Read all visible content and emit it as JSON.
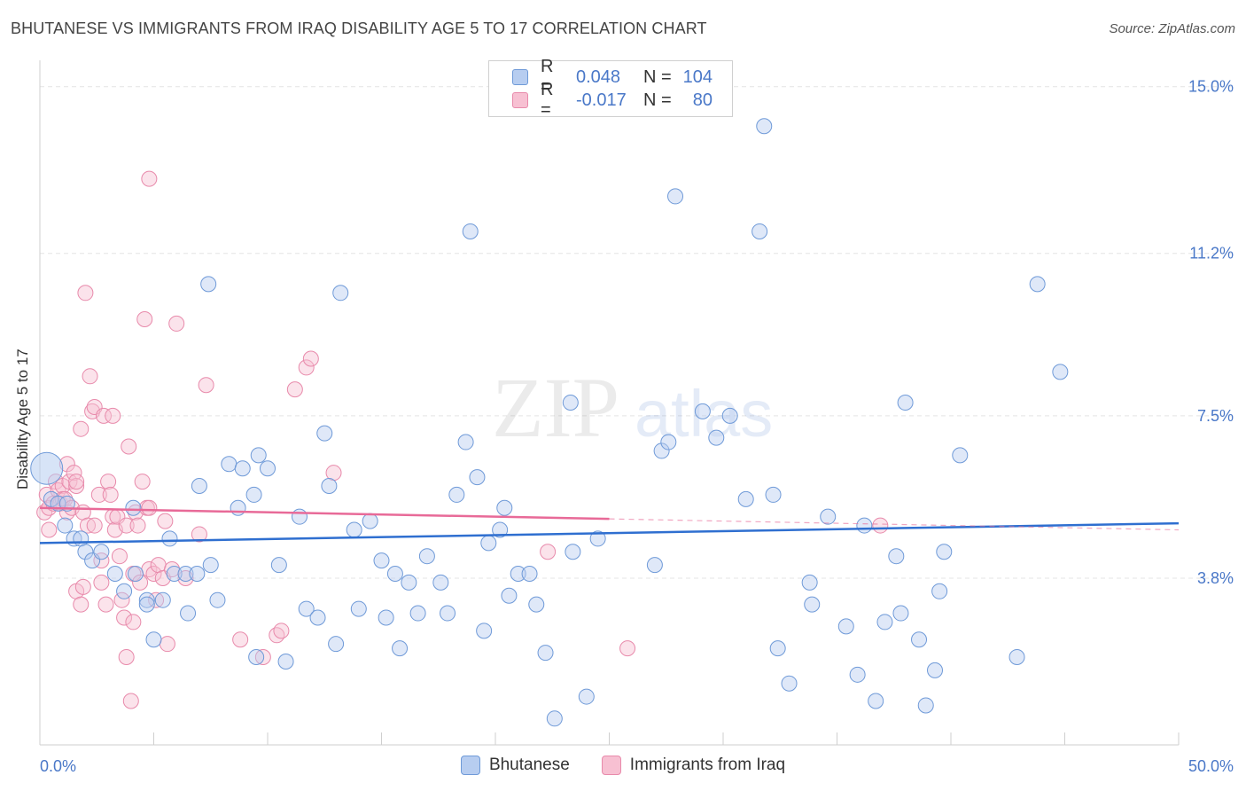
{
  "title": "BHUTANESE VS IMMIGRANTS FROM IRAQ DISABILITY AGE 5 TO 17 CORRELATION CHART",
  "source": "Source: ZipAtlas.com",
  "watermark": {
    "zip": "ZIP",
    "atlas": "atlas"
  },
  "legend": {
    "r_label": "R =",
    "n_label": "N =",
    "rows": [
      {
        "r_value": "0.048",
        "n_value": "104"
      },
      {
        "r_value": "-0.017",
        "n_value": "80"
      }
    ]
  },
  "colors": {
    "blue_fill": "#b7cdf0",
    "blue_edge": "#6f9ad8",
    "blue_line": "#2f6fd0",
    "pink_fill": "#f7c0d2",
    "pink_edge": "#e88aab",
    "pink_line": "#e86a98",
    "grid": "#e4e4e4",
    "axis_text": "#4a78c8"
  },
  "chart_data": {
    "type": "scatter",
    "title": "BHUTANESE VS IMMIGRANTS FROM IRAQ DISABILITY AGE 5 TO 17 CORRELATION CHART",
    "xlabel": "",
    "ylabel": "Disability Age 5 to 17",
    "xlim": [
      0,
      50
    ],
    "ylim": [
      0,
      15.6
    ],
    "x_tick_labels": [
      "0.0%",
      "50.0%"
    ],
    "y_ticks": [
      3.8,
      7.5,
      11.2,
      15.0
    ],
    "y_tick_labels": [
      "3.8%",
      "7.5%",
      "11.2%",
      "15.0%"
    ],
    "legend_position": "top-center",
    "series": [
      {
        "name": "Bhutanese",
        "r": 0.048,
        "n": 104,
        "trend": [
          [
            0,
            4.6
          ],
          [
            50,
            5.05
          ]
        ],
        "points": [
          [
            0.3,
            6.3
          ],
          [
            0.5,
            5.6
          ],
          [
            0.8,
            5.5
          ],
          [
            1.2,
            5.5
          ],
          [
            1.1,
            5.0
          ],
          [
            1.5,
            4.7
          ],
          [
            1.8,
            4.7
          ],
          [
            2.0,
            4.4
          ],
          [
            2.3,
            4.2
          ],
          [
            2.7,
            4.4
          ],
          [
            3.3,
            3.9
          ],
          [
            3.7,
            3.5
          ],
          [
            4.1,
            5.4
          ],
          [
            4.2,
            3.9
          ],
          [
            4.7,
            3.3
          ],
          [
            4.7,
            3.2
          ],
          [
            5.0,
            2.4
          ],
          [
            5.4,
            3.3
          ],
          [
            5.7,
            4.7
          ],
          [
            5.9,
            3.9
          ],
          [
            6.4,
            3.9
          ],
          [
            6.5,
            3.0
          ],
          [
            6.9,
            3.9
          ],
          [
            7.0,
            5.9
          ],
          [
            7.5,
            4.1
          ],
          [
            7.4,
            10.5
          ],
          [
            7.8,
            3.3
          ],
          [
            8.3,
            6.4
          ],
          [
            8.7,
            5.4
          ],
          [
            8.9,
            6.3
          ],
          [
            9.4,
            5.7
          ],
          [
            9.5,
            2.0
          ],
          [
            9.6,
            6.6
          ],
          [
            10.0,
            6.3
          ],
          [
            10.5,
            4.1
          ],
          [
            10.8,
            1.9
          ],
          [
            11.4,
            5.2
          ],
          [
            11.7,
            3.1
          ],
          [
            12.2,
            2.9
          ],
          [
            12.5,
            7.1
          ],
          [
            12.7,
            5.9
          ],
          [
            13.0,
            2.3
          ],
          [
            13.2,
            10.3
          ],
          [
            13.8,
            4.9
          ],
          [
            14.0,
            3.1
          ],
          [
            14.5,
            5.1
          ],
          [
            15.0,
            4.2
          ],
          [
            15.2,
            2.9
          ],
          [
            15.6,
            3.9
          ],
          [
            15.8,
            2.2
          ],
          [
            16.2,
            3.7
          ],
          [
            16.6,
            3.0
          ],
          [
            17.0,
            4.3
          ],
          [
            17.6,
            3.7
          ],
          [
            17.9,
            3.0
          ],
          [
            18.3,
            5.7
          ],
          [
            18.7,
            6.9
          ],
          [
            18.9,
            11.7
          ],
          [
            19.2,
            6.1
          ],
          [
            19.5,
            2.6
          ],
          [
            19.7,
            4.6
          ],
          [
            20.2,
            4.9
          ],
          [
            20.4,
            5.4
          ],
          [
            20.6,
            3.4
          ],
          [
            21.0,
            3.9
          ],
          [
            21.5,
            3.9
          ],
          [
            21.8,
            3.2
          ],
          [
            22.2,
            2.1
          ],
          [
            22.6,
            0.6
          ],
          [
            23.3,
            7.8
          ],
          [
            23.4,
            4.4
          ],
          [
            24.0,
            1.1
          ],
          [
            24.5,
            4.7
          ],
          [
            27.0,
            4.1
          ],
          [
            27.3,
            6.7
          ],
          [
            27.6,
            6.9
          ],
          [
            27.9,
            12.5
          ],
          [
            29.1,
            7.6
          ],
          [
            29.7,
            7.0
          ],
          [
            30.3,
            7.5
          ],
          [
            31.0,
            5.6
          ],
          [
            31.6,
            11.7
          ],
          [
            31.8,
            14.1
          ],
          [
            32.2,
            5.7
          ],
          [
            32.4,
            2.2
          ],
          [
            32.9,
            1.4
          ],
          [
            33.8,
            3.7
          ],
          [
            33.9,
            3.2
          ],
          [
            34.6,
            5.2
          ],
          [
            35.4,
            2.7
          ],
          [
            35.9,
            1.6
          ],
          [
            36.2,
            5.0
          ],
          [
            36.7,
            1.0
          ],
          [
            37.1,
            2.8
          ],
          [
            37.8,
            3.0
          ],
          [
            37.6,
            4.3
          ],
          [
            38.0,
            7.8
          ],
          [
            38.6,
            2.4
          ],
          [
            38.9,
            0.9
          ],
          [
            39.3,
            1.7
          ],
          [
            39.7,
            4.4
          ],
          [
            39.5,
            3.5
          ],
          [
            40.4,
            6.6
          ],
          [
            42.9,
            2.0
          ],
          [
            43.8,
            10.5
          ],
          [
            44.8,
            8.5
          ]
        ]
      },
      {
        "name": "Immigrants from Iraq",
        "r": -0.017,
        "n": 80,
        "trend": [
          [
            0,
            5.4
          ],
          [
            25,
            5.15
          ]
        ],
        "trend_dashed": [
          [
            25,
            5.15
          ],
          [
            50,
            4.9
          ]
        ],
        "points": [
          [
            0.2,
            5.3
          ],
          [
            0.3,
            5.7
          ],
          [
            0.4,
            5.4
          ],
          [
            0.4,
            4.9
          ],
          [
            0.6,
            5.5
          ],
          [
            0.7,
            6.0
          ],
          [
            0.8,
            5.8
          ],
          [
            0.9,
            5.5
          ],
          [
            1.0,
            5.9
          ],
          [
            1.0,
            5.6
          ],
          [
            1.1,
            5.6
          ],
          [
            1.2,
            5.3
          ],
          [
            1.2,
            6.4
          ],
          [
            1.3,
            6.0
          ],
          [
            1.4,
            5.4
          ],
          [
            1.5,
            6.2
          ],
          [
            1.6,
            5.9
          ],
          [
            1.6,
            6.0
          ],
          [
            1.8,
            7.2
          ],
          [
            1.6,
            3.5
          ],
          [
            1.8,
            3.2
          ],
          [
            1.9,
            3.6
          ],
          [
            2.0,
            10.3
          ],
          [
            1.9,
            5.3
          ],
          [
            2.1,
            5.0
          ],
          [
            2.2,
            8.4
          ],
          [
            2.3,
            7.6
          ],
          [
            2.4,
            7.7
          ],
          [
            2.4,
            5.0
          ],
          [
            2.6,
            5.7
          ],
          [
            2.7,
            3.7
          ],
          [
            2.7,
            4.2
          ],
          [
            2.8,
            7.5
          ],
          [
            2.9,
            3.2
          ],
          [
            3.0,
            6.0
          ],
          [
            3.1,
            5.7
          ],
          [
            3.2,
            5.2
          ],
          [
            3.2,
            7.5
          ],
          [
            3.3,
            4.9
          ],
          [
            3.4,
            5.2
          ],
          [
            3.5,
            4.3
          ],
          [
            3.6,
            3.3
          ],
          [
            3.7,
            2.9
          ],
          [
            3.8,
            2.0
          ],
          [
            3.8,
            5.0
          ],
          [
            3.9,
            6.8
          ],
          [
            4.1,
            3.9
          ],
          [
            4.0,
            1.0
          ],
          [
            4.1,
            2.8
          ],
          [
            4.2,
            5.3
          ],
          [
            4.3,
            5.0
          ],
          [
            4.4,
            3.7
          ],
          [
            4.5,
            6.0
          ],
          [
            4.6,
            9.7
          ],
          [
            4.7,
            5.4
          ],
          [
            4.8,
            4.0
          ],
          [
            4.8,
            5.4
          ],
          [
            4.8,
            12.9
          ],
          [
            5.0,
            3.9
          ],
          [
            5.1,
            3.3
          ],
          [
            5.2,
            4.1
          ],
          [
            5.4,
            3.8
          ],
          [
            5.5,
            5.1
          ],
          [
            5.6,
            2.3
          ],
          [
            5.8,
            4.0
          ],
          [
            6.0,
            9.6
          ],
          [
            6.4,
            3.8
          ],
          [
            7.0,
            4.8
          ],
          [
            7.3,
            8.2
          ],
          [
            8.8,
            2.4
          ],
          [
            9.8,
            2.0
          ],
          [
            10.4,
            2.5
          ],
          [
            10.6,
            2.6
          ],
          [
            11.2,
            8.1
          ],
          [
            11.7,
            8.6
          ],
          [
            11.9,
            8.8
          ],
          [
            12.9,
            6.2
          ],
          [
            22.3,
            4.4
          ],
          [
            25.8,
            2.2
          ],
          [
            36.9,
            5.0
          ]
        ]
      }
    ]
  },
  "bottom_legend": [
    "Bhutanese",
    "Immigrants from Iraq"
  ]
}
